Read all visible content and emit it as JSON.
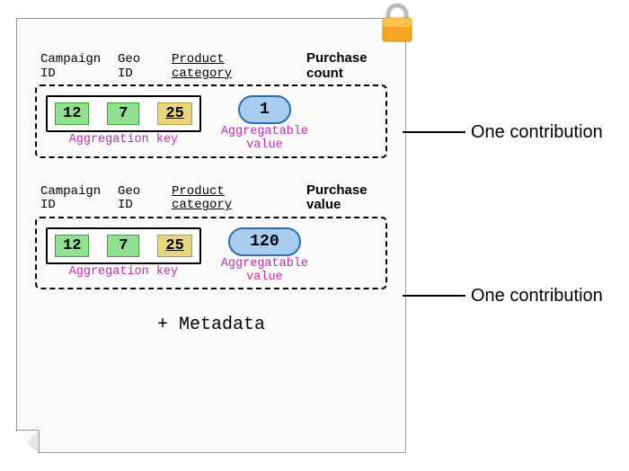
{
  "lock": {
    "body_color": "#f5a623",
    "shackle_color": "#bdbdbd"
  },
  "page_background": "#fafafa",
  "page_border": "#9a9a9a",
  "pill_style": {
    "bg": "#a8cdee",
    "border": "#2a6fb5"
  },
  "chip_colors": {
    "green_bg": "#91e08f",
    "green_border": "#3aa338",
    "yellow_bg": "#e9d682",
    "yellow_border": "#b99c2a"
  },
  "sublabel_color": "#c02db0",
  "headers": {
    "campaign": "Campaign\nID",
    "geo": "Geo\nID",
    "category": "Product\ncategory"
  },
  "sublabels": {
    "key": "Aggregation key",
    "value": "Aggregatable\nvalue"
  },
  "contributions": [
    {
      "metric_label": "Purchase\ncount",
      "key": {
        "campaign": "12",
        "geo": "7",
        "category": "25"
      },
      "value": "1",
      "callout": "One contribution"
    },
    {
      "metric_label": "Purchase\nvalue",
      "key": {
        "campaign": "12",
        "geo": "7",
        "category": "25"
      },
      "value": "120",
      "callout": "One contribution"
    }
  ],
  "metadata_label": "+ Metadata",
  "column_widths": {
    "campaign": 86,
    "geo": 60,
    "category": 78,
    "metric": 90
  }
}
